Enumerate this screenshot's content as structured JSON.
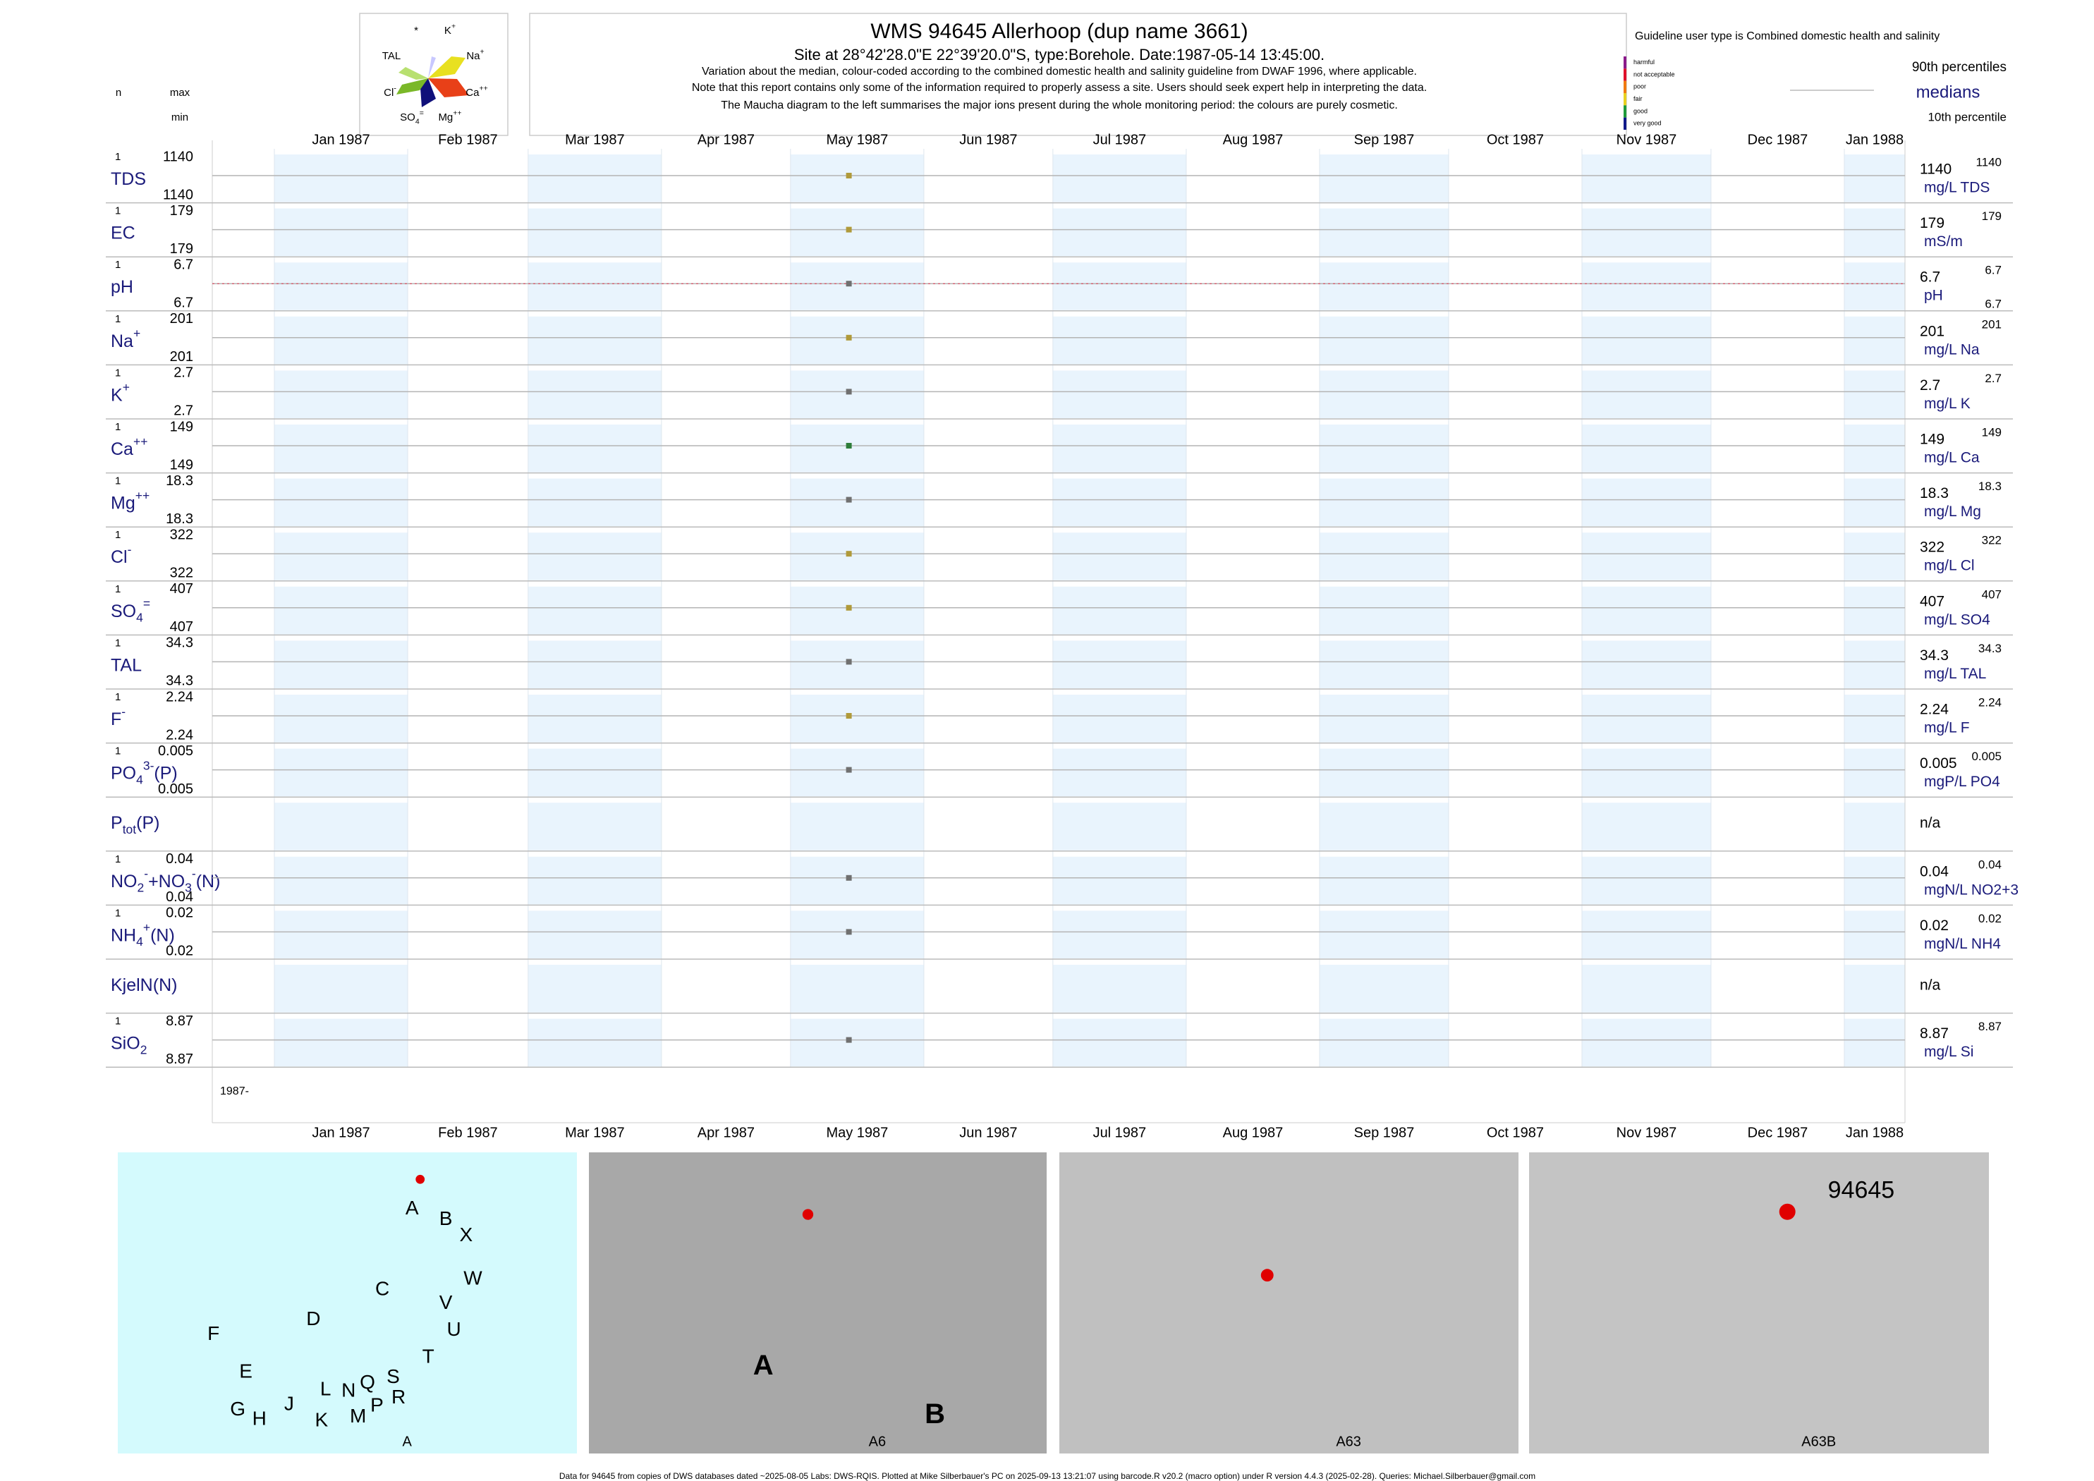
{
  "header": {
    "title": "WMS 94645  Allerhoop (dup name 3661)",
    "subtitle": {
      "prefix": "Site at 28°42'28.0\"E 22°39'20.0\"S, type:Borehole. Date:",
      "date": "1987-05-14 13:45:00",
      "suffix": "."
    },
    "notes": [
      "Variation about the median,  colour-coded according to the combined domestic health and salinity guideline from DWAF 1996, where applicable.",
      "Note that this report contains only some of the information required to properly assess a site. Users should seek expert help in interpreting the data.",
      "The Maucha diagram to the left summarises the major ions present during the whole monitoring period: the colours are purely cosmetic."
    ]
  },
  "maucha": {
    "labels": [
      [
        {
          "text": "*"
        }
      ],
      [
        {
          "text": "K"
        },
        {
          "text": "+",
          "pos": "sup"
        }
      ],
      [
        {
          "text": "TAL"
        }
      ],
      [
        {
          "text": "Na"
        },
        {
          "text": "+",
          "pos": "sup"
        }
      ],
      [
        {
          "text": "Cl"
        },
        {
          "text": "-",
          "pos": "sup"
        }
      ],
      [
        {
          "text": "Ca"
        },
        {
          "text": "++",
          "pos": "sup"
        }
      ],
      [
        {
          "text": "SO"
        },
        {
          "text": "4",
          "pos": "sub"
        },
        {
          "text": "=",
          "pos": "sup"
        }
      ],
      [
        {
          "text": "Mg"
        },
        {
          "text": "++",
          "pos": "sup"
        }
      ]
    ]
  },
  "guideline": {
    "title": "Guideline user type is Combined domestic health and salinity",
    "classes": [
      {
        "label": "harmful",
        "color": "#8b1a8b"
      },
      {
        "label": "not acceptable",
        "color": "#e0102a"
      },
      {
        "label": "poor",
        "color": "#f07a10"
      },
      {
        "label": "fair",
        "color": "#e8d020"
      },
      {
        "label": "good",
        "color": "#1e9a3a"
      },
      {
        "label": "very good",
        "color": "#101a8a"
      }
    ],
    "p90": "90th percentiles",
    "median": "medians",
    "p10": "10th percentile"
  },
  "columns": {
    "n": "n",
    "max": "max",
    "min": "min"
  },
  "months": [
    "Jan 1987",
    "Feb 1987",
    "Mar 1987",
    "Apr 1987",
    "May 1987",
    "Jun 1987",
    "Jul 1987",
    "Aug 1987",
    "Sep 1987",
    "Oct 1987",
    "Nov 1987",
    "Dec 1987",
    "Jan 1988"
  ],
  "year_label": "1987-",
  "rows": [
    {
      "label": [
        {
          "text": "TDS"
        }
      ],
      "n": 1,
      "max": 1140,
      "min": 1140,
      "median": 1140,
      "unit": "mg/L TDS",
      "p90": 1140,
      "color": "#b09a3a"
    },
    {
      "label": [
        {
          "text": "EC"
        }
      ],
      "n": 1,
      "max": 179,
      "min": 179,
      "median": 179,
      "unit": "mS/m",
      "p90": 179,
      "color": "#b09a3a"
    },
    {
      "label": [
        {
          "text": "pH"
        }
      ],
      "n": 1,
      "max": 6.7,
      "min": 6.7,
      "median": 6.7,
      "unit": "pH",
      "p90": 6.7,
      "p10": 6.7,
      "color": "#707070"
    },
    {
      "label": [
        {
          "text": "Na"
        },
        {
          "text": "+",
          "pos": "sup"
        }
      ],
      "n": 1,
      "max": 201,
      "min": 201,
      "median": 201,
      "unit": "mg/L Na",
      "p90": 201,
      "color": "#b09a3a"
    },
    {
      "label": [
        {
          "text": "K"
        },
        {
          "text": "+",
          "pos": "sup"
        }
      ],
      "n": 1,
      "max": 2.7,
      "min": 2.7,
      "median": 2.7,
      "unit": "mg/L K",
      "p90": 2.7,
      "color": "#707070"
    },
    {
      "label": [
        {
          "text": "Ca"
        },
        {
          "text": "++",
          "pos": "sup"
        }
      ],
      "n": 1,
      "max": 149,
      "min": 149,
      "median": 149,
      "unit": "mg/L Ca",
      "p90": 149,
      "color": "#2e7d3a"
    },
    {
      "label": [
        {
          "text": "Mg"
        },
        {
          "text": "++",
          "pos": "sup"
        }
      ],
      "n": 1,
      "max": 18.3,
      "min": 18.3,
      "median": 18.3,
      "unit": "mg/L Mg",
      "p90": 18.3,
      "color": "#707070"
    },
    {
      "label": [
        {
          "text": "Cl"
        },
        {
          "text": "-",
          "pos": "sup"
        }
      ],
      "n": 1,
      "max": 322,
      "min": 322,
      "median": 322,
      "unit": "mg/L Cl",
      "p90": 322,
      "color": "#b09a3a"
    },
    {
      "label": [
        {
          "text": "SO"
        },
        {
          "text": "4",
          "pos": "sub"
        },
        {
          "text": "=",
          "pos": "sup"
        }
      ],
      "n": 1,
      "max": 407,
      "min": 407,
      "median": 407,
      "unit": "mg/L SO4",
      "p90": 407,
      "color": "#b09a3a"
    },
    {
      "label": [
        {
          "text": "TAL"
        }
      ],
      "n": 1,
      "max": 34.3,
      "min": 34.3,
      "median": 34.3,
      "unit": "mg/L TAL",
      "p90": 34.3,
      "color": "#707070"
    },
    {
      "label": [
        {
          "text": "F"
        },
        {
          "text": "-",
          "pos": "sup"
        }
      ],
      "n": 1,
      "max": 2.24,
      "min": 2.24,
      "median": 2.24,
      "unit": "mg/L F",
      "p90": 2.24,
      "color": "#b09a3a"
    },
    {
      "label": [
        {
          "text": "PO"
        },
        {
          "text": "4",
          "pos": "sub"
        },
        {
          "text": "3-",
          "pos": "sup"
        },
        {
          "text": "(P)"
        }
      ],
      "n": 1,
      "max": 0.005,
      "min": 0.005,
      "median": 0.005,
      "unit": "mgP/L PO4",
      "p90": 0.005,
      "color": "#707070"
    },
    {
      "label": [
        {
          "text": "P"
        },
        {
          "text": "tot",
          "pos": "sub"
        },
        {
          "text": "(P)"
        }
      ],
      "median": "n/a"
    },
    {
      "label": [
        {
          "text": "NO"
        },
        {
          "text": "2",
          "pos": "sub"
        },
        {
          "text": "-",
          "pos": "sup"
        },
        {
          "text": "+NO"
        },
        {
          "text": "3",
          "pos": "sub"
        },
        {
          "text": "-",
          "pos": "sup"
        },
        {
          "text": "(N)"
        }
      ],
      "n": 1,
      "max": 0.04,
      "min": 0.04,
      "median": 0.04,
      "unit": "mgN/L NO2+3",
      "p90": 0.04,
      "color": "#707070"
    },
    {
      "label": [
        {
          "text": "NH"
        },
        {
          "text": "4",
          "pos": "sub"
        },
        {
          "text": "+",
          "pos": "sup"
        },
        {
          "text": "(N)"
        }
      ],
      "n": 1,
      "max": 0.02,
      "min": 0.02,
      "median": 0.02,
      "unit": "mgN/L NH4",
      "p90": 0.02,
      "color": "#707070"
    },
    {
      "label": [
        {
          "text": "KjelN(N)"
        }
      ],
      "median": "n/a"
    },
    {
      "label": [
        {
          "text": "SiO"
        },
        {
          "text": "2",
          "pos": "sub"
        }
      ],
      "n": 1,
      "max": 8.87,
      "min": 8.87,
      "median": 8.87,
      "unit": "mg/L Si",
      "p90": 8.87,
      "color": "#707070"
    }
  ],
  "maps": [
    {
      "caption": "A",
      "labels": [
        "A",
        "B",
        "X",
        "W",
        "C",
        "V",
        "U",
        "D",
        "F",
        "T",
        "E",
        "S",
        "R",
        "Q",
        "N",
        "L",
        "J",
        "K",
        "M",
        "P",
        "G",
        "H"
      ]
    },
    {
      "caption": "A6",
      "labels": [
        "A",
        "B"
      ]
    },
    {
      "caption": "A63",
      "labels": []
    },
    {
      "caption": "A63B",
      "labels": [
        "94645"
      ]
    }
  ],
  "footer": "Data for 94645 from copies of DWS databases dated ~2025-08-05 Labs: DWS-RQIS. Plotted at Mike Silberbauer's PC on 2025-09-13 13:21:07 using barcode.R v20.2 (macro option) under R version 4.4.3 (2025-02-28). Queries: Michael.Silberbauer@gmail.com"
}
